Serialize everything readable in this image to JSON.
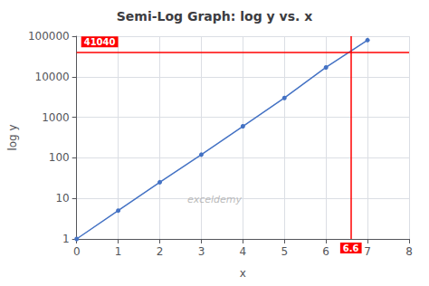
{
  "chart_data": {
    "type": "line",
    "title": "Semi-Log Graph: log y vs. x",
    "xlabel": "x",
    "ylabel": "log y",
    "x": [
      0,
      1,
      2,
      3,
      4,
      5,
      6,
      7
    ],
    "values": [
      1,
      5,
      25,
      120,
      600,
      3000,
      17000,
      80000
    ],
    "color": "#4472C4",
    "marker": "circle",
    "log": "y",
    "xlim": [
      0,
      8
    ],
    "xticks": [
      0,
      1,
      2,
      3,
      4,
      5,
      6,
      7,
      8
    ],
    "ylim": [
      1,
      100000
    ],
    "yticks": [
      1,
      10,
      100,
      1000,
      10000,
      100000
    ],
    "grid": true,
    "annotations": [
      {
        "type": "hline",
        "y": 41040,
        "label": "41040",
        "color": "red"
      },
      {
        "type": "vline",
        "x": 6.6,
        "label": "6.6",
        "color": "red"
      },
      {
        "type": "text",
        "text": "exceldemy"
      }
    ]
  }
}
